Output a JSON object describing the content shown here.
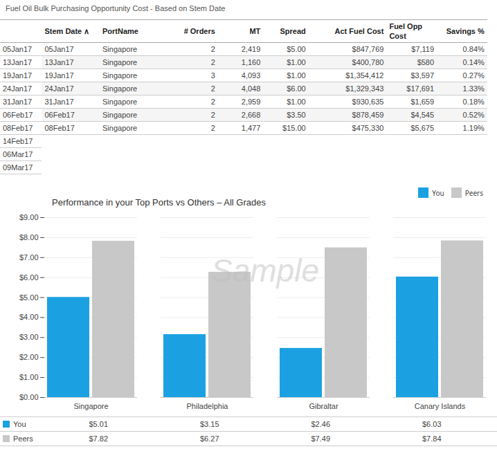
{
  "table": {
    "title": "Fuel Oil Bulk Purchasing Opportunity Cost - Based on Stem Date",
    "headers": [
      "Stem Date ∧",
      "PortName",
      "# Orders",
      "MT",
      "Spread",
      "Act Fuel Cost",
      "Fuel Opp\nCost",
      "Savings %"
    ],
    "rows": [
      [
        "05Jan17",
        "Singapore",
        "2",
        "2,419",
        "$5.00",
        "$847,769",
        "$7,119",
        "0.84%"
      ],
      [
        "13Jan17",
        "Singapore",
        "2",
        "1,160",
        "$1.00",
        "$400,780",
        "$580",
        "0.14%"
      ],
      [
        "19Jan17",
        "Singapore",
        "3",
        "4,093",
        "$1.00",
        "$1,354,412",
        "$3,597",
        "0.27%"
      ],
      [
        "24Jan17",
        "Singapore",
        "2",
        "4,048",
        "$6.00",
        "$1,329,343",
        "$17,691",
        "1.33%"
      ],
      [
        "31Jan17",
        "Singapore",
        "2",
        "2,959",
        "$1.00",
        "$930,635",
        "$1,659",
        "0.18%"
      ],
      [
        "06Feb17",
        "Singapore",
        "2",
        "2,668",
        "$3.50",
        "$878,459",
        "$4,545",
        "0.52%"
      ],
      [
        "08Feb17",
        "Singapore",
        "2",
        "1,477",
        "$15.00",
        "$475,330",
        "$5,675",
        "1.19%"
      ]
    ],
    "left_dates": [
      "14Feb17",
      "06Mar17",
      "09Mar17"
    ]
  },
  "chart_data": {
    "type": "bar",
    "title": "Performance in your Top Ports vs Others – All Grades",
    "annotations": [
      "Sample"
    ],
    "categories": [
      "Singapore",
      "Philadelphia",
      "Gibraltar",
      "Canary Islands"
    ],
    "series": [
      {
        "name": "You",
        "color": "#1BA1E2",
        "values": [
          5.01,
          3.15,
          2.46,
          6.03
        ],
        "value_labels": [
          "$5.01",
          "$3.15",
          "$2.46",
          "$6.03"
        ]
      },
      {
        "name": "Peers",
        "color": "#C8C8C8",
        "values": [
          7.82,
          6.27,
          7.49,
          7.84
        ],
        "value_labels": [
          "$7.82",
          "$6.27",
          "$7.49",
          "$7.84"
        ]
      }
    ],
    "ylim": [
      0,
      9
    ],
    "yticks": [
      {
        "value": 0,
        "label": "$0.00"
      },
      {
        "value": 1,
        "label": "$1.00"
      },
      {
        "value": 2,
        "label": "$2.00"
      },
      {
        "value": 3,
        "label": "$3.00"
      },
      {
        "value": 4,
        "label": "$4.00"
      },
      {
        "value": 5,
        "label": "$5.00"
      },
      {
        "value": 6,
        "label": "$6.00"
      },
      {
        "value": 7,
        "label": "$7.00"
      },
      {
        "value": 8,
        "label": "$8.00"
      },
      {
        "value": 9,
        "label": "$9.00"
      }
    ],
    "grid": true,
    "legend": "upper right",
    "data_labels": true
  }
}
